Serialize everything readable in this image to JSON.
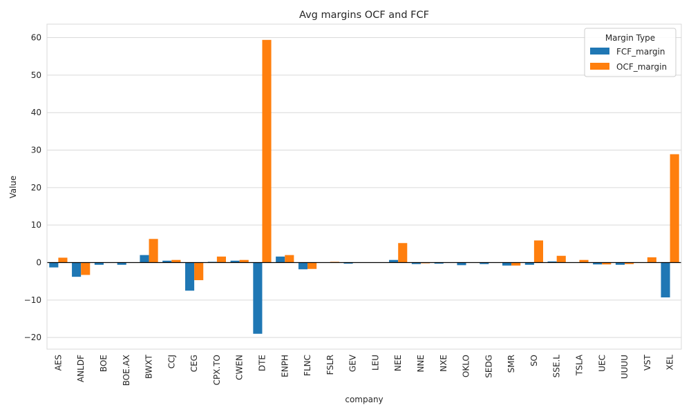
{
  "chart_data": {
    "type": "bar",
    "title": "Avg margins OCF and FCF",
    "xlabel": "company",
    "ylabel": "Value",
    "ylim": [
      -23.1,
      63.6
    ],
    "yticks": [
      -20,
      -10,
      0,
      10,
      20,
      30,
      40,
      50,
      60
    ],
    "ytick_labels": [
      "−20",
      "−10",
      "0",
      "10",
      "20",
      "30",
      "40",
      "50",
      "60"
    ],
    "grid": true,
    "legend": {
      "title": "Margin Type",
      "placement": "top-right"
    },
    "categories": [
      "AES",
      "ANLDF",
      "BOE",
      "BOE.AX",
      "BWXT",
      "CCJ",
      "CEG",
      "CPX.TO",
      "CWEN",
      "DTE",
      "ENPH",
      "FLNC",
      "FSLR",
      "GEV",
      "LEU",
      "NEE",
      "NNE",
      "NXE",
      "OKLO",
      "SEDG",
      "SMR",
      "SO",
      "SSE.L",
      "TSLA",
      "UEC",
      "UUUU",
      "VST",
      "XEL"
    ],
    "series": [
      {
        "name": "FCF_margin",
        "color": "#1f77b4",
        "values": [
          -1.3,
          -3.8,
          -0.6,
          -0.6,
          2.0,
          0.5,
          -7.5,
          0.2,
          0.5,
          -19.0,
          1.6,
          -1.8,
          0.0,
          -0.3,
          0.0,
          0.7,
          -0.4,
          -0.3,
          -0.7,
          -0.4,
          -0.8,
          -0.6,
          0.3,
          0.0,
          -0.5,
          -0.6,
          0.0,
          -9.3
        ]
      },
      {
        "name": "OCF_margin",
        "color": "#ff7f0e",
        "values": [
          1.3,
          -3.3,
          0.0,
          0.0,
          6.3,
          0.7,
          -4.7,
          1.6,
          0.7,
          59.4,
          2.0,
          -1.7,
          0.2,
          0.0,
          0.0,
          5.2,
          -0.2,
          0.0,
          0.0,
          0.0,
          -0.8,
          5.9,
          1.8,
          0.7,
          -0.5,
          -0.4,
          1.4,
          28.9
        ]
      }
    ]
  }
}
